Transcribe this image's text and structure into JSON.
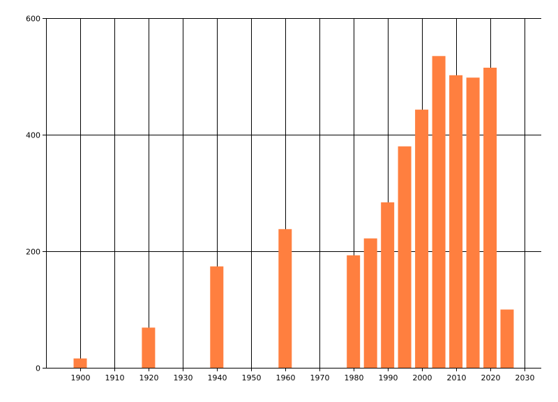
{
  "chart_data": {
    "type": "bar",
    "x": [
      1900,
      1920,
      1940,
      1960,
      1980,
      1985,
      1990,
      1995,
      2000,
      2005,
      2010,
      2015,
      2020,
      2025
    ],
    "values": [
      16,
      69,
      174,
      238,
      193,
      222,
      284,
      380,
      443,
      535,
      502,
      498,
      515,
      100
    ],
    "xlim": [
      1890,
      2035
    ],
    "ylim": [
      0,
      600
    ],
    "x_ticks": [
      1900,
      1910,
      1920,
      1930,
      1940,
      1950,
      1960,
      1970,
      1980,
      1990,
      2000,
      2010,
      2020,
      2030
    ],
    "y_ticks": [
      0,
      200,
      400,
      600
    ],
    "grid": true,
    "bar_color": "#ff7f3f",
    "title": "",
    "xlabel": "",
    "ylabel": ""
  }
}
